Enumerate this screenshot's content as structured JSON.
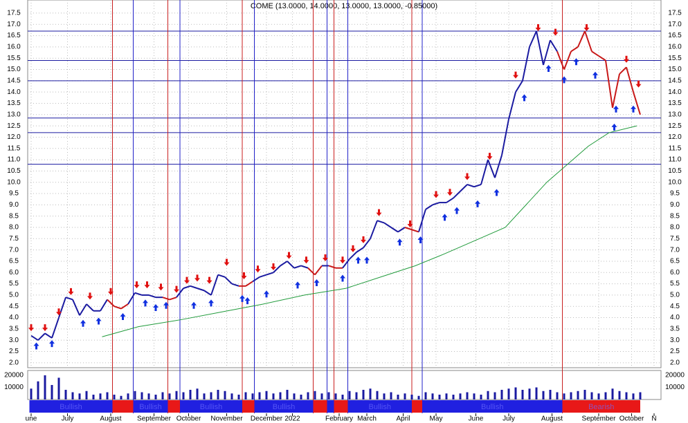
{
  "chart_data": {
    "type": "ohlc-signal",
    "title": "COME (13.0000, 14.0000, 13.0000, 13.0000, -0.85000)",
    "xlim": [
      -2,
      364
    ],
    "xticks": [
      {
        "value": 0,
        "label": "une"
      },
      {
        "value": 21,
        "label": "July"
      },
      {
        "value": 46,
        "label": "August"
      },
      {
        "value": 71,
        "label": "September"
      },
      {
        "value": 91,
        "label": "October"
      },
      {
        "value": 113,
        "label": "November"
      },
      {
        "value": 136,
        "label": "December"
      },
      {
        "value": 151,
        "label": "2022"
      },
      {
        "value": 178,
        "label": "February"
      },
      {
        "value": 194,
        "label": "March"
      },
      {
        "value": 215,
        "label": "April"
      },
      {
        "value": 234,
        "label": "May"
      },
      {
        "value": 257,
        "label": "June"
      },
      {
        "value": 276,
        "label": "July"
      },
      {
        "value": 301,
        "label": "August"
      },
      {
        "value": 328,
        "label": "September"
      },
      {
        "value": 347,
        "label": "October"
      },
      {
        "value": 360,
        "label": "N"
      }
    ],
    "ylim": [
      1.78,
      18.08
    ],
    "yticks": [
      {
        "value": 2,
        "label": "2.0"
      },
      {
        "value": 2.5,
        "label": "2.5"
      },
      {
        "value": 3,
        "label": "3.0"
      },
      {
        "value": 3.5,
        "label": "3.5"
      },
      {
        "value": 4,
        "label": "4.0"
      },
      {
        "value": 4.5,
        "label": "4.5"
      },
      {
        "value": 5,
        "label": "5.0"
      },
      {
        "value": 5.5,
        "label": "5.5"
      },
      {
        "value": 6,
        "label": "6.0"
      },
      {
        "value": 6.5,
        "label": "6.5"
      },
      {
        "value": 7,
        "label": "7.0"
      },
      {
        "value": 7.5,
        "label": "7.5"
      },
      {
        "value": 8,
        "label": "8.0"
      },
      {
        "value": 8.5,
        "label": "8.5"
      },
      {
        "value": 9,
        "label": "9.0"
      },
      {
        "value": 9.5,
        "label": "9.5"
      },
      {
        "value": 10,
        "label": "10.0"
      },
      {
        "value": 10.5,
        "label": "10.5"
      },
      {
        "value": 11,
        "label": "11.0"
      },
      {
        "value": 11.5,
        "label": "11.5"
      },
      {
        "value": 12,
        "label": "12.0"
      },
      {
        "value": 12.5,
        "label": "12.5"
      },
      {
        "value": 13,
        "label": "13.0"
      },
      {
        "value": 13.5,
        "label": "13.5"
      },
      {
        "value": 14,
        "label": "14.0"
      },
      {
        "value": 14.5,
        "label": "14.5"
      },
      {
        "value": 15,
        "label": "15.0"
      },
      {
        "value": 15.5,
        "label": "15.5"
      },
      {
        "value": 16,
        "label": "16.0"
      },
      {
        "value": 16.5,
        "label": "16.5"
      },
      {
        "value": 17,
        "label": "17.0"
      },
      {
        "value": 17.5,
        "label": "17.5"
      }
    ],
    "grid": true,
    "price": {
      "x": [
        0,
        4,
        8,
        12,
        16,
        20,
        24,
        28,
        32,
        36,
        40,
        44,
        48,
        52,
        56,
        60,
        64,
        68,
        72,
        76,
        80,
        84,
        88,
        92,
        96,
        100,
        104,
        108,
        112,
        116,
        120,
        124,
        128,
        132,
        136,
        140,
        144,
        148,
        152,
        156,
        160,
        164,
        168,
        172,
        176,
        180,
        184,
        188,
        192,
        196,
        200,
        204,
        208,
        212,
        216,
        220,
        224,
        228,
        232,
        236,
        240,
        244,
        248,
        252,
        256,
        260,
        264,
        268,
        272,
        276,
        280,
        284,
        288,
        292,
        296,
        300,
        304,
        308,
        312,
        316,
        320,
        324,
        328,
        332,
        336,
        340,
        344,
        348,
        352
      ],
      "values": [
        3.2,
        3.0,
        3.3,
        3.1,
        4.0,
        4.9,
        4.8,
        4.1,
        4.6,
        4.3,
        4.3,
        4.8,
        4.5,
        4.4,
        4.6,
        5.1,
        5.0,
        5.0,
        4.9,
        4.9,
        4.8,
        4.9,
        5.3,
        5.4,
        5.3,
        5.2,
        5.0,
        5.9,
        5.8,
        5.5,
        5.4,
        5.4,
        5.6,
        5.8,
        5.9,
        6.0,
        6.3,
        6.5,
        6.2,
        6.3,
        6.2,
        5.9,
        6.3,
        6.3,
        6.2,
        6.2,
        6.6,
        6.9,
        7.1,
        7.5,
        8.3,
        8.2,
        8.0,
        7.8,
        8.0,
        7.9,
        7.8,
        8.8,
        9.0,
        9.1,
        9.1,
        9.3,
        9.6,
        9.9,
        9.8,
        9.9,
        11.0,
        10.2,
        11.2,
        12.8,
        14.0,
        14.5,
        16.0,
        16.7,
        15.2,
        16.3,
        15.8,
        15.0,
        15.8,
        16.0,
        16.7,
        15.8,
        15.6,
        15.4,
        13.3,
        14.8,
        15.1,
        14.0,
        13.0
      ]
    },
    "moving_average": {
      "color": "#1f9a3a",
      "x": [
        41,
        62,
        86,
        110,
        134,
        158,
        182,
        206,
        222,
        238,
        262,
        274,
        286,
        298,
        310,
        322,
        334,
        350
      ],
      "values": [
        3.15,
        3.6,
        3.9,
        4.25,
        4.6,
        5.0,
        5.3,
        5.9,
        6.3,
        6.8,
        7.6,
        8.0,
        9.0,
        10.0,
        10.8,
        11.6,
        12.2,
        12.5
      ]
    },
    "levels": {
      "color": "#1a1aa0",
      "values": [
        16.7,
        15.4,
        14.5,
        12.85,
        12.2,
        10.8
      ]
    },
    "sell_lines": {
      "color": "#c81e1e",
      "x": [
        47,
        79,
        122,
        163,
        175,
        220,
        307
      ]
    },
    "buy_lines": {
      "color": "#2020c8",
      "x": [
        59,
        86,
        129,
        171,
        183,
        226
      ]
    },
    "sell_signals": {
      "color": "#e01010",
      "x": [
        0,
        8,
        16,
        23,
        34,
        46,
        61,
        67,
        75,
        84,
        90,
        96,
        103,
        113,
        123,
        131,
        140,
        149,
        159,
        170,
        180,
        186,
        192,
        201,
        219,
        234,
        242,
        252,
        265,
        280,
        293,
        303,
        321,
        344,
        351
      ],
      "values": [
        3.4,
        3.4,
        4.1,
        5.0,
        4.8,
        5.0,
        5.3,
        5.3,
        5.2,
        5.1,
        5.5,
        5.6,
        5.5,
        6.3,
        5.7,
        6.0,
        6.1,
        6.6,
        6.4,
        6.5,
        6.4,
        6.9,
        7.3,
        8.5,
        8.0,
        9.3,
        9.4,
        10.1,
        11.0,
        14.6,
        16.7,
        16.5,
        16.7,
        15.3,
        14.2
      ]
    },
    "buy_signals": {
      "color": "#1030e0",
      "x": [
        3,
        12,
        30,
        39,
        53,
        66,
        72,
        78,
        94,
        104,
        122,
        125,
        136,
        154,
        165,
        180,
        189,
        194,
        213,
        225,
        239,
        246,
        258,
        269,
        285,
        299,
        308,
        315,
        326,
        337,
        338,
        348
      ],
      "values": [
        2.9,
        3.0,
        3.9,
        4.0,
        4.2,
        4.8,
        4.6,
        4.7,
        4.7,
        4.8,
        5.0,
        4.9,
        5.2,
        5.6,
        5.7,
        5.9,
        6.7,
        6.7,
        7.5,
        7.6,
        8.6,
        8.9,
        9.2,
        9.7,
        13.9,
        15.2,
        14.7,
        15.5,
        14.9,
        12.6,
        13.4,
        13.4
      ]
    },
    "volume": {
      "color": "#1a1aa0",
      "ylim": [
        0,
        24000
      ],
      "yticks": [
        10000,
        20000
      ],
      "values": [
        9000,
        15000,
        20000,
        12000,
        18000,
        8000,
        6000,
        5000,
        7000,
        4000,
        5000,
        6000,
        4000,
        3000,
        5000,
        7000,
        6000,
        5000,
        4000,
        6000,
        5000,
        7000,
        6000,
        8000,
        9000,
        5000,
        6000,
        8000,
        7000,
        5000,
        4000,
        6000,
        5000,
        6000,
        7000,
        5000,
        6000,
        8000,
        5000,
        4000,
        6000,
        7000,
        5000,
        6000,
        5000,
        4000,
        7000,
        6000,
        8000,
        9000,
        7000,
        5000,
        6000,
        4000,
        5000,
        4000,
        3000,
        6000,
        5000,
        4000,
        5000,
        4000,
        5000,
        6000,
        5000,
        4000,
        7000,
        6000,
        8000,
        9000,
        10000,
        8000,
        9000,
        10000,
        7000,
        8000,
        6000,
        5000,
        6000,
        7000,
        8000,
        6000,
        5000,
        6000,
        9000,
        7000,
        6000,
        5000,
        6000
      ]
    },
    "band": [
      {
        "start": -1,
        "end": 47,
        "color": "#2020e0",
        "label": "Bullish"
      },
      {
        "start": 47,
        "end": 59,
        "color": "#e81818"
      },
      {
        "start": 59,
        "end": 79,
        "color": "#2020e0",
        "label": "Bullish"
      },
      {
        "start": 79,
        "end": 86,
        "color": "#e81818"
      },
      {
        "start": 86,
        "end": 122,
        "color": "#2020e0",
        "label": "Bullish"
      },
      {
        "start": 122,
        "end": 129,
        "color": "#e81818"
      },
      {
        "start": 129,
        "end": 163,
        "color": "#2020e0",
        "label": "Bullish"
      },
      {
        "start": 163,
        "end": 171,
        "color": "#e81818"
      },
      {
        "start": 171,
        "end": 175,
        "color": "#2020e0"
      },
      {
        "start": 175,
        "end": 183,
        "color": "#e81818"
      },
      {
        "start": 183,
        "end": 220,
        "color": "#2020e0",
        "label": "Bullish"
      },
      {
        "start": 220,
        "end": 226,
        "color": "#e81818"
      },
      {
        "start": 226,
        "end": 307,
        "color": "#2020e0",
        "label": "Bullish"
      },
      {
        "start": 307,
        "end": 352,
        "color": "#e81818",
        "label": "Bearish"
      }
    ]
  }
}
